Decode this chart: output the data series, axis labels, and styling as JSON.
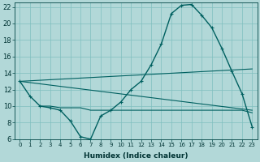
{
  "xlabel": "Humidex (Indice chaleur)",
  "background_color": "#b2d8d8",
  "grid_color": "#7fbfbf",
  "line_color": "#006060",
  "xlim": [
    -0.5,
    23.5
  ],
  "ylim": [
    6,
    22.5
  ],
  "yticks": [
    6,
    8,
    10,
    12,
    14,
    16,
    18,
    20,
    22
  ],
  "xticks": [
    0,
    1,
    2,
    3,
    4,
    5,
    6,
    7,
    8,
    9,
    10,
    11,
    12,
    13,
    14,
    15,
    16,
    17,
    18,
    19,
    20,
    21,
    22,
    23
  ],
  "curve_main_x": [
    0,
    1,
    2,
    3,
    4,
    5,
    6,
    7,
    8,
    9,
    10,
    11,
    12,
    13,
    14,
    15,
    16,
    17,
    18,
    19,
    20,
    21,
    22,
    23
  ],
  "curve_main_y": [
    13,
    11.2,
    10.0,
    9.8,
    9.5,
    8.2,
    6.3,
    6.0,
    8.8,
    9.5,
    10.5,
    12.0,
    13.0,
    15.0,
    17.5,
    21.2,
    22.2,
    22.3,
    21.0,
    19.5,
    17.0,
    14.2,
    11.5,
    7.5
  ],
  "curve_line1_x": [
    0,
    23
  ],
  "curve_line1_y": [
    13.0,
    14.5
  ],
  "curve_line2_x": [
    0,
    23
  ],
  "curve_line2_y": [
    13.0,
    9.5
  ],
  "curve_flat_x": [
    2,
    3,
    4,
    5,
    6,
    7,
    8,
    9,
    10,
    11,
    12,
    13,
    14,
    15,
    16,
    17,
    18,
    19,
    20,
    21,
    22,
    23
  ],
  "curve_flat_y": [
    10.0,
    10.0,
    9.8,
    9.8,
    9.8,
    9.5,
    9.5,
    9.5,
    9.5,
    9.5,
    9.5,
    9.5,
    9.5,
    9.5,
    9.5,
    9.5,
    9.5,
    9.5,
    9.5,
    9.5,
    9.5,
    9.2
  ],
  "xlabel_fontsize": 6.5,
  "tick_fontsize_x": 5.0,
  "tick_fontsize_y": 6.0
}
